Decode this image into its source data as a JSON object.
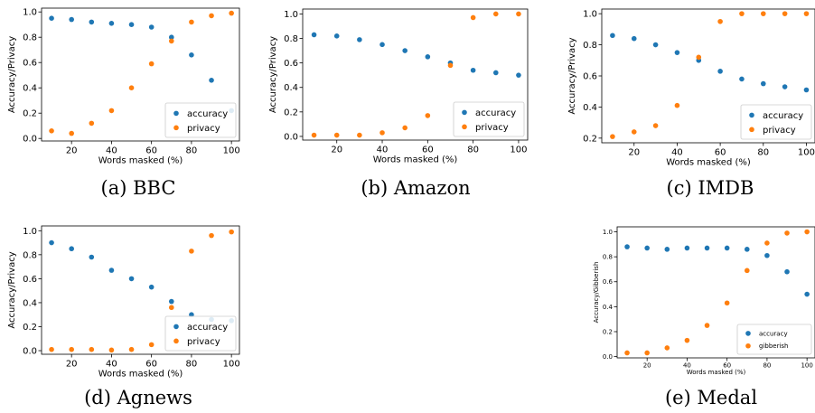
{
  "chart_data": [
    {
      "type": "scatter",
      "caption": "(a) BBC",
      "xlabel": "Words masked (%)",
      "ylabel": "Accuracy/Privacy",
      "xlim": [
        5,
        104
      ],
      "ylim": [
        -0.02,
        1.03
      ],
      "xticks": [
        20,
        40,
        60,
        80,
        100
      ],
      "yticks": [
        0.0,
        0.2,
        0.4,
        0.6,
        0.8,
        1.0
      ],
      "ytick_decimals": 1,
      "legend_position": "lower-right",
      "series": [
        {
          "name": "accuracy",
          "color": "#1f77b4",
          "x": [
            10,
            20,
            30,
            40,
            50,
            60,
            70,
            80,
            90,
            100
          ],
          "y": [
            0.95,
            0.94,
            0.92,
            0.91,
            0.9,
            0.88,
            0.8,
            0.66,
            0.46,
            0.22
          ]
        },
        {
          "name": "privacy",
          "color": "#ff7f0e",
          "x": [
            10,
            20,
            30,
            40,
            50,
            60,
            70,
            80,
            90,
            100
          ],
          "y": [
            0.06,
            0.04,
            0.12,
            0.22,
            0.4,
            0.59,
            0.77,
            0.92,
            0.97,
            0.99
          ]
        }
      ]
    },
    {
      "type": "scatter",
      "caption": "(b) Amazon",
      "xlabel": "Words masked (%)",
      "ylabel": "Accuracy/Privacy",
      "xlim": [
        5,
        104
      ],
      "ylim": [
        -0.03,
        1.04
      ],
      "xticks": [
        20,
        40,
        60,
        80,
        100
      ],
      "yticks": [
        0.0,
        0.2,
        0.4,
        0.6,
        0.8,
        1.0
      ],
      "ytick_decimals": 1,
      "legend_position": "lower-right",
      "series": [
        {
          "name": "accuracy",
          "color": "#1f77b4",
          "x": [
            10,
            20,
            30,
            40,
            50,
            60,
            70,
            80,
            90,
            100
          ],
          "y": [
            0.83,
            0.82,
            0.79,
            0.75,
            0.7,
            0.65,
            0.6,
            0.54,
            0.52,
            0.5
          ]
        },
        {
          "name": "privacy",
          "color": "#ff7f0e",
          "x": [
            10,
            20,
            30,
            40,
            50,
            60,
            70,
            80,
            90,
            100
          ],
          "y": [
            0.01,
            0.01,
            0.01,
            0.03,
            0.07,
            0.17,
            0.58,
            0.97,
            1.0,
            1.0
          ]
        }
      ]
    },
    {
      "type": "scatter",
      "caption": "(c) IMDB",
      "xlabel": "Words masked (%)",
      "ylabel": "Accuracy/Privacy",
      "xlim": [
        5,
        104
      ],
      "ylim": [
        0.17,
        1.03
      ],
      "xticks": [
        20,
        40,
        60,
        80,
        100
      ],
      "yticks": [
        0.2,
        0.4,
        0.6,
        0.8,
        1.0
      ],
      "ytick_decimals": 1,
      "legend_position": "lower-right",
      "series": [
        {
          "name": "accuracy",
          "color": "#1f77b4",
          "x": [
            10,
            20,
            30,
            40,
            50,
            60,
            70,
            80,
            90,
            100
          ],
          "y": [
            0.86,
            0.84,
            0.8,
            0.75,
            0.7,
            0.63,
            0.58,
            0.55,
            0.53,
            0.51
          ]
        },
        {
          "name": "privacy",
          "color": "#ff7f0e",
          "x": [
            10,
            20,
            30,
            40,
            50,
            60,
            70,
            80,
            90,
            100
          ],
          "y": [
            0.21,
            0.24,
            0.28,
            0.41,
            0.72,
            0.95,
            1.0,
            1.0,
            1.0,
            1.0
          ]
        }
      ]
    },
    {
      "type": "scatter",
      "caption": "(d) Agnews",
      "xlabel": "Words masked (%)",
      "ylabel": "Accuracy/Privacy",
      "xlim": [
        5,
        104
      ],
      "ylim": [
        -0.03,
        1.04
      ],
      "xticks": [
        20,
        40,
        60,
        80,
        100
      ],
      "yticks": [
        0.0,
        0.2,
        0.4,
        0.6,
        0.8,
        1.0
      ],
      "ytick_decimals": 1,
      "legend_position": "lower-right",
      "series": [
        {
          "name": "accuracy",
          "color": "#1f77b4",
          "x": [
            10,
            20,
            30,
            40,
            50,
            60,
            70,
            80,
            90,
            100
          ],
          "y": [
            0.9,
            0.85,
            0.78,
            0.67,
            0.6,
            0.53,
            0.41,
            0.3,
            0.26,
            0.25
          ]
        },
        {
          "name": "privacy",
          "color": "#ff7f0e",
          "x": [
            10,
            20,
            30,
            40,
            50,
            60,
            70,
            80,
            90,
            100
          ],
          "y": [
            0.01,
            0.01,
            0.01,
            0.005,
            0.01,
            0.05,
            0.36,
            0.83,
            0.96,
            0.99
          ]
        }
      ]
    },
    {
      "type": "scatter",
      "caption": "(e) Medal",
      "xlabel": "Words masked (%)",
      "ylabel": "Accuracy/Gibberish",
      "xlim": [
        5,
        104
      ],
      "ylim": [
        -0.01,
        1.04
      ],
      "xticks": [
        20,
        40,
        60,
        80,
        100
      ],
      "yticks": [
        0.0,
        0.2,
        0.4,
        0.6,
        0.8,
        1.0
      ],
      "ytick_decimals": 1,
      "legend_position": "lower-right",
      "series": [
        {
          "name": "accuracy",
          "color": "#1f77b4",
          "x": [
            10,
            20,
            30,
            40,
            50,
            60,
            70,
            80,
            90,
            100
          ],
          "y": [
            0.88,
            0.87,
            0.86,
            0.87,
            0.87,
            0.87,
            0.86,
            0.81,
            0.68,
            0.5
          ]
        },
        {
          "name": "gibberish",
          "color": "#ff7f0e",
          "x": [
            10,
            20,
            30,
            40,
            50,
            60,
            70,
            80,
            90,
            100
          ],
          "y": [
            0.03,
            0.03,
            0.07,
            0.13,
            0.25,
            0.43,
            0.69,
            0.91,
            0.99,
            1.0
          ]
        }
      ]
    }
  ]
}
